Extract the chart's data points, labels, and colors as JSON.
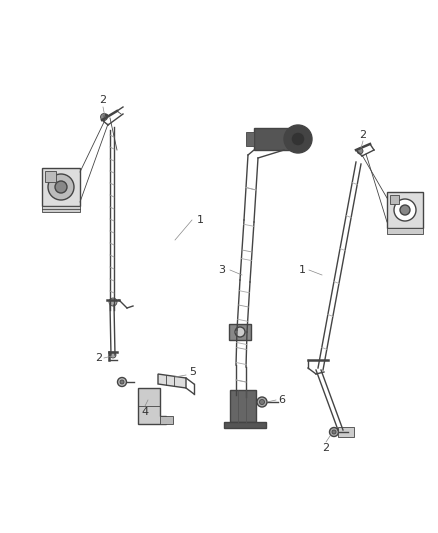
{
  "background_color": "#ffffff",
  "figure_width": 4.38,
  "figure_height": 5.33,
  "dpi": 100,
  "line_color": "#444444",
  "light_color": "#aaaaaa",
  "label_color": "#333333",
  "lw_main": 1.0,
  "lw_thin": 0.6,
  "lw_thick": 1.8,
  "label_fs": 7.5
}
